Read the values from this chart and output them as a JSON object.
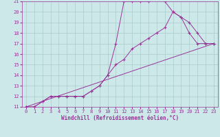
{
  "bg_color": "#cce8e8",
  "line_color": "#993399",
  "grid_color": "#aacccc",
  "xlabel": "Windchill (Refroidissement éolien,°C)",
  "xlim": [
    -0.5,
    23.5
  ],
  "ylim": [
    11,
    21
  ],
  "xticks": [
    0,
    1,
    2,
    3,
    4,
    5,
    6,
    7,
    8,
    9,
    10,
    11,
    12,
    13,
    14,
    15,
    16,
    17,
    18,
    19,
    20,
    21,
    22,
    23
  ],
  "yticks": [
    11,
    12,
    13,
    14,
    15,
    16,
    17,
    18,
    19,
    20,
    21
  ],
  "line1_x": [
    0,
    1,
    2,
    3,
    4,
    5,
    6,
    7,
    8,
    9,
    10,
    11,
    12,
    13,
    14,
    15,
    16,
    17,
    18,
    19,
    20,
    21,
    22,
    23
  ],
  "line1_y": [
    11,
    11,
    11.5,
    12,
    12,
    12,
    12,
    12,
    12.5,
    13,
    14,
    17,
    21,
    21,
    21,
    21,
    21.5,
    21,
    20,
    19.5,
    18,
    17,
    17,
    17
  ],
  "line2_x": [
    0,
    1,
    2,
    3,
    4,
    5,
    6,
    7,
    8,
    9,
    10,
    11,
    12,
    13,
    14,
    15,
    16,
    17,
    18,
    19,
    20,
    21,
    22,
    23
  ],
  "line2_y": [
    11,
    11,
    11.5,
    12,
    12,
    12,
    12,
    12,
    12.5,
    13,
    14,
    15,
    15.5,
    16.5,
    17,
    17.5,
    18,
    18.5,
    20,
    19.5,
    19,
    18,
    17,
    17
  ],
  "line3_x": [
    0,
    23
  ],
  "line3_y": [
    11,
    17
  ],
  "figsize": [
    3.2,
    2.0
  ],
  "dpi": 100
}
